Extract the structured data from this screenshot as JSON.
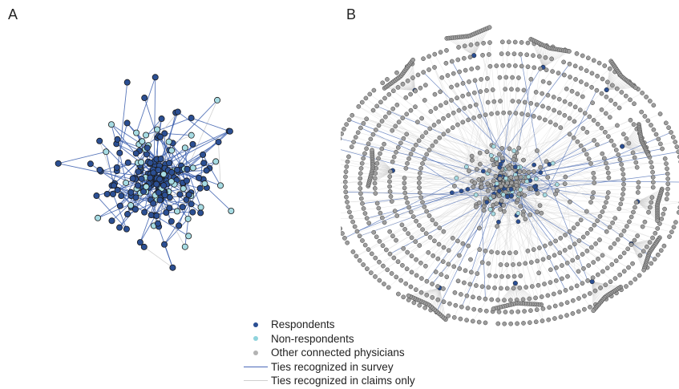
{
  "panels": [
    {
      "label": "A"
    },
    {
      "label": "B"
    }
  ],
  "legend": [
    {
      "type": "dot",
      "label": "Respondents",
      "color": "#2b4f93"
    },
    {
      "type": "dot",
      "label": "Non-respondents",
      "color": "#8fd3dc"
    },
    {
      "type": "dot",
      "label": "Other connected physicians",
      "color": "#b3b3b3"
    },
    {
      "type": "line",
      "label": "Ties recognized in survey",
      "color": "#4a68b8"
    },
    {
      "type": "line",
      "label": "Ties recognized in claims only",
      "color": "#cfcfcf"
    }
  ],
  "colors": {
    "respondent": "#2b4f93",
    "non_respondent": "#a6dbe3",
    "other": "#9e9e9e",
    "survey_tie": "#3b5fae",
    "claims_tie": "#cccccc",
    "node_outline": "#1a1a1a"
  }
}
